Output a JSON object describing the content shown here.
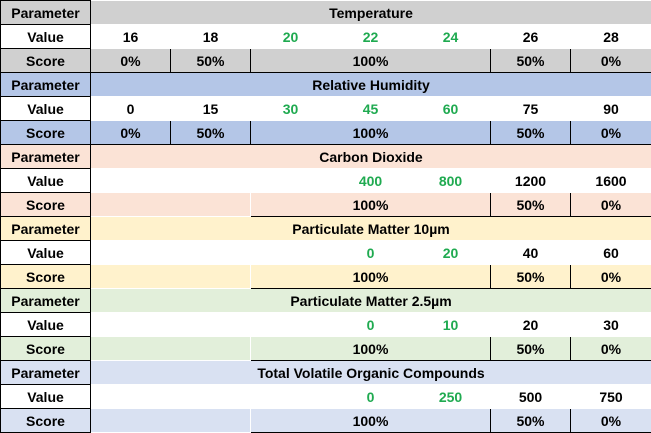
{
  "labels": {
    "parameter": "Parameter",
    "value": "Value",
    "score": "Score"
  },
  "colors": {
    "green_text": "#1faa50",
    "borders": "#000000"
  },
  "sections": [
    {
      "name": "Temperature",
      "colors": {
        "header": "#d0d0d0",
        "value_row": "#ffffff",
        "score_row": "#d0d0d0"
      },
      "values": [
        {
          "text": "16",
          "green": false
        },
        {
          "text": "18",
          "green": false
        },
        {
          "text": "20",
          "green": true
        },
        {
          "text": "22",
          "green": true
        },
        {
          "text": "24",
          "green": true
        },
        {
          "text": "26",
          "green": false
        },
        {
          "text": "28",
          "green": false
        }
      ],
      "scores": [
        {
          "text": "0%",
          "span": 1
        },
        {
          "text": "50%",
          "span": 1
        },
        {
          "text": "100%",
          "span": 3
        },
        {
          "text": "50%",
          "span": 1
        },
        {
          "text": "0%",
          "span": 1
        }
      ]
    },
    {
      "name": "Relative Humidity",
      "colors": {
        "header": "#b4c6e7",
        "value_row": "#ffffff",
        "score_row": "#b4c6e7"
      },
      "values": [
        {
          "text": "0",
          "green": false
        },
        {
          "text": "15",
          "green": false
        },
        {
          "text": "30",
          "green": true
        },
        {
          "text": "45",
          "green": true
        },
        {
          "text": "60",
          "green": true
        },
        {
          "text": "75",
          "green": false
        },
        {
          "text": "90",
          "green": false
        }
      ],
      "scores": [
        {
          "text": "0%",
          "span": 1
        },
        {
          "text": "50%",
          "span": 1
        },
        {
          "text": "100%",
          "span": 3
        },
        {
          "text": "50%",
          "span": 1
        },
        {
          "text": "0%",
          "span": 1
        }
      ]
    },
    {
      "name": "Carbon Dioxide",
      "colors": {
        "header": "#fbe3d6",
        "value_row": "#ffffff",
        "score_row": "#fbe3d6"
      },
      "values": [
        {
          "text": "",
          "green": false
        },
        {
          "text": "",
          "green": false
        },
        {
          "text": "",
          "green": false
        },
        {
          "text": "400",
          "green": true
        },
        {
          "text": "800",
          "green": true
        },
        {
          "text": "1200",
          "green": false
        },
        {
          "text": "1600",
          "green": false
        }
      ],
      "scores": [
        {
          "text": "",
          "span": 2
        },
        {
          "text": "100%",
          "span": 3
        },
        {
          "text": "50%",
          "span": 1
        },
        {
          "text": "0%",
          "span": 1
        }
      ]
    },
    {
      "name": "Particulate Matter 10µm",
      "colors": {
        "header": "#fff2cc",
        "value_row": "#ffffff",
        "score_row": "#fff2cc"
      },
      "values": [
        {
          "text": "",
          "green": false
        },
        {
          "text": "",
          "green": false
        },
        {
          "text": "",
          "green": false
        },
        {
          "text": "0",
          "green": true
        },
        {
          "text": "20",
          "green": true
        },
        {
          "text": "40",
          "green": false
        },
        {
          "text": "60",
          "green": false
        }
      ],
      "scores": [
        {
          "text": "",
          "span": 2
        },
        {
          "text": "100%",
          "span": 3
        },
        {
          "text": "50%",
          "span": 1
        },
        {
          "text": "0%",
          "span": 1
        }
      ]
    },
    {
      "name": "Particulate Matter 2.5µm",
      "colors": {
        "header": "#e2efda",
        "value_row": "#ffffff",
        "score_row": "#e2efda"
      },
      "values": [
        {
          "text": "",
          "green": false
        },
        {
          "text": "",
          "green": false
        },
        {
          "text": "",
          "green": false
        },
        {
          "text": "0",
          "green": true
        },
        {
          "text": "10",
          "green": true
        },
        {
          "text": "20",
          "green": false
        },
        {
          "text": "30",
          "green": false
        }
      ],
      "scores": [
        {
          "text": "",
          "span": 2
        },
        {
          "text": "100%",
          "span": 3
        },
        {
          "text": "50%",
          "span": 1
        },
        {
          "text": "0%",
          "span": 1
        }
      ]
    },
    {
      "name": "Total Volatile Organic Compounds",
      "colors": {
        "header": "#d9e1f2",
        "value_row": "#ffffff",
        "score_row": "#d9e1f2"
      },
      "values": [
        {
          "text": "",
          "green": false
        },
        {
          "text": "",
          "green": false
        },
        {
          "text": "",
          "green": false
        },
        {
          "text": "0",
          "green": true
        },
        {
          "text": "250",
          "green": true
        },
        {
          "text": "500",
          "green": false
        },
        {
          "text": "750",
          "green": false
        }
      ],
      "scores": [
        {
          "text": "",
          "span": 2
        },
        {
          "text": "100%",
          "span": 3
        },
        {
          "text": "50%",
          "span": 1
        },
        {
          "text": "0%",
          "span": 1
        }
      ]
    }
  ]
}
